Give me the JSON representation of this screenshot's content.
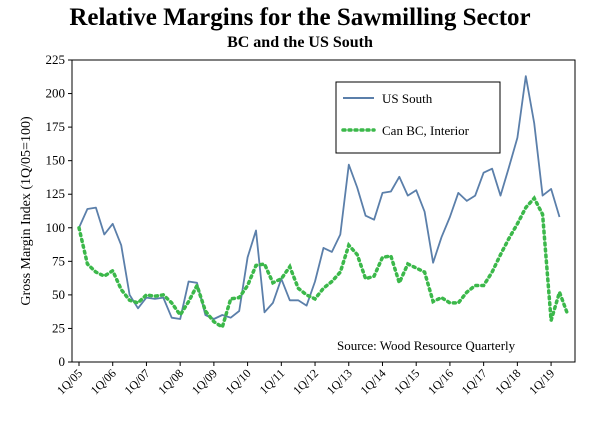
{
  "chart_data": {
    "type": "line",
    "title": "Relative Margins for the Sawmilling Sector",
    "subtitle": "BC and the US South",
    "ylabel": "Gross Margin Index (1Q/05=100)",
    "xlabel": "",
    "ylim": [
      0,
      225
    ],
    "yticks": [
      "0",
      "25",
      "50",
      "75",
      "100",
      "125",
      "150",
      "175",
      "200",
      "225"
    ],
    "xticks": [
      "1Q/05",
      "1Q/06",
      "1Q/07",
      "1Q/08",
      "1Q/09",
      "1Q/10",
      "1Q/11",
      "1Q/12",
      "1Q/13",
      "1Q/14",
      "1Q/15",
      "1Q/16",
      "1Q/17",
      "1Q/18",
      "1Q/19"
    ],
    "source": "Source: Wood Resource Quarterly",
    "legend_position": "top-right",
    "colors": {
      "us_south": "#5b7faa",
      "can_bc": "#3bb84a"
    },
    "series": [
      {
        "name": "US South",
        "style": "solid",
        "values": [
          100,
          114,
          115,
          95,
          103,
          87,
          50,
          40,
          48,
          47,
          48,
          33,
          32,
          60,
          59,
          35,
          32,
          35,
          33,
          38,
          78,
          98,
          37,
          44,
          62,
          46,
          46,
          42,
          60,
          85,
          82,
          95,
          147,
          130,
          109,
          106,
          126,
          127,
          138,
          124,
          128,
          112,
          74,
          93,
          108,
          126,
          120,
          124,
          141,
          144,
          124,
          145,
          167,
          213,
          178,
          124,
          129,
          108
        ]
      },
      {
        "name": "Can BC, Interior",
        "style": "dotted",
        "values": [
          100,
          73,
          67,
          64,
          68,
          54,
          46,
          44,
          50,
          49,
          50,
          44,
          35,
          45,
          57,
          38,
          30,
          26,
          47,
          48,
          57,
          72,
          73,
          59,
          62,
          71,
          55,
          50,
          47,
          55,
          60,
          67,
          87,
          80,
          62,
          64,
          78,
          79,
          59,
          73,
          70,
          67,
          45,
          48,
          44,
          44,
          52,
          57,
          57,
          67,
          80,
          92,
          103,
          115,
          122,
          110,
          31,
          52,
          35
        ]
      }
    ]
  }
}
